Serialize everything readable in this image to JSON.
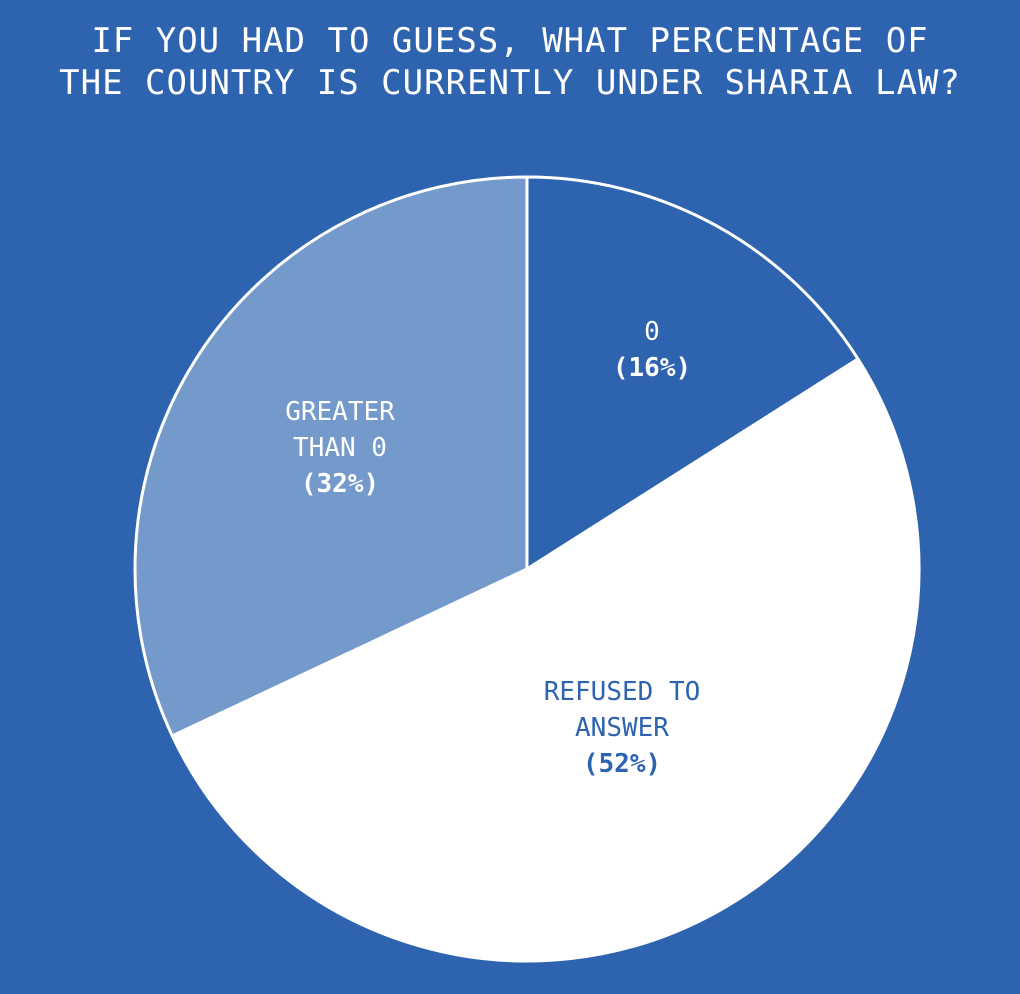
{
  "chart_data": {
    "type": "pie",
    "title": [
      "IF YOU HAD TO GUESS, WHAT PERCENTAGE OF",
      "THE COUNTRY IS CURRENTLY UNDER SHARIA LAW?"
    ],
    "slices": [
      {
        "label": [
          "0"
        ],
        "pct_text": "(16%)",
        "value": 16,
        "color": "#2e63b0",
        "text_color": "#ffffff"
      },
      {
        "label": [
          "REFUSED TO",
          "ANSWER"
        ],
        "pct_text": "(52%)",
        "value": 52,
        "color": "#ffffff",
        "text_color": "#2e63b0"
      },
      {
        "label": [
          "GREATER",
          "THAN 0"
        ],
        "pct_text": "(32%)",
        "value": 32,
        "color": "#7499cb",
        "text_color": "#ffffff"
      }
    ],
    "start": "12 o'clock",
    "direction": "clockwise",
    "legend": "none",
    "background_color": "#2e63b0"
  }
}
